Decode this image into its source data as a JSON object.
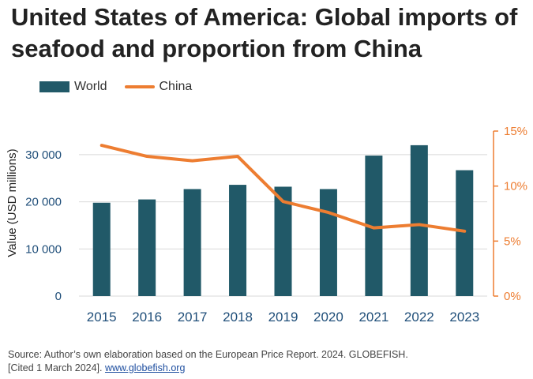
{
  "chart_data": {
    "type": "bar",
    "title": "United States of America: Global imports of seafood and proportion from China",
    "categories": [
      "2015",
      "2016",
      "2017",
      "2018",
      "2019",
      "2020",
      "2021",
      "2022",
      "2023"
    ],
    "series": [
      {
        "name": "World",
        "type": "bar",
        "axis": "left",
        "values": [
          19800,
          20500,
          22700,
          23600,
          23200,
          22700,
          29800,
          32000,
          26700
        ]
      },
      {
        "name": "China",
        "type": "line",
        "axis": "right",
        "values": [
          13.7,
          12.7,
          12.3,
          12.7,
          8.6,
          7.6,
          6.2,
          6.5,
          5.9
        ]
      }
    ],
    "ylabel": "Value (USD millions)",
    "ylim": [
      0,
      35000
    ],
    "yticks": [
      "0",
      "10 000",
      "20 000",
      "30 000"
    ],
    "y2lim": [
      0,
      15
    ],
    "y2ticks": [
      "0%",
      "5%",
      "10%",
      "15%"
    ],
    "legend_position": "top-left",
    "grid": true,
    "colors": {
      "bar": "#215968",
      "line": "#ed7d31",
      "grid": "#d9d9d9",
      "axis_text": "#1f4e79"
    }
  },
  "source": {
    "line1": "Source: Author’s own elaboration based on the European Price Report. 2024. GLOBEFISH.",
    "line2_prefix": "[Cited 1 March 2024]. ",
    "link_text": "www.globefish.org"
  }
}
